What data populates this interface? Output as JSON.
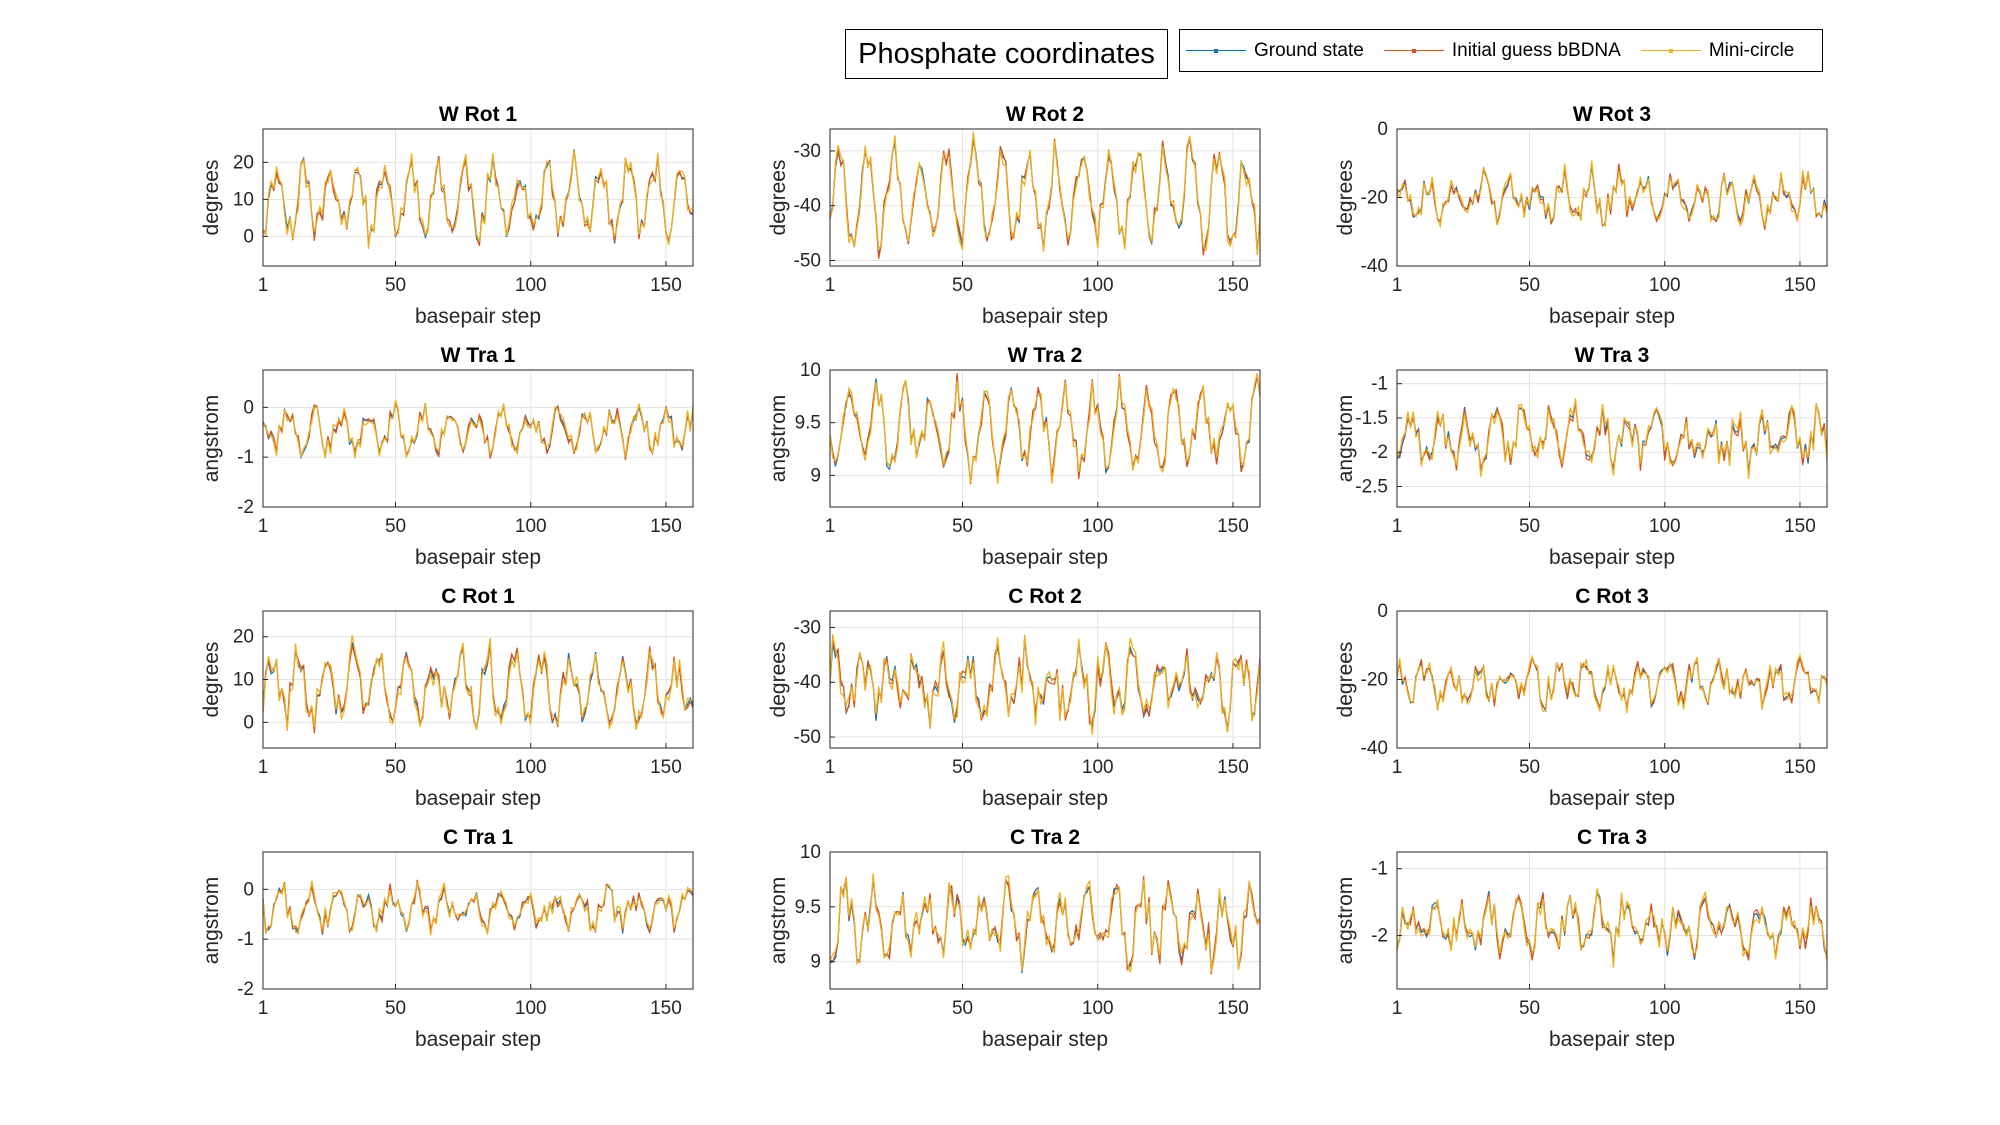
{
  "figure": {
    "suptitle": "Phosphate coordinates",
    "legend": [
      {
        "label": "Ground state",
        "color": "#0072BD"
      },
      {
        "label": "Initial guess bBDNA",
        "color": "#D95319"
      },
      {
        "label": "Mini-circle",
        "color": "#EDB120"
      }
    ]
  },
  "chart_data": [
    {
      "type": "line",
      "title": "W Rot 1",
      "xlabel": "basepair step",
      "ylabel": "degrees",
      "xlim": [
        1,
        160
      ],
      "ylim": [
        -8,
        29
      ],
      "xticks": [
        1,
        50,
        100,
        150
      ],
      "yticks": [
        0,
        10,
        20
      ],
      "grid": true,
      "seed": 11,
      "series": [
        {
          "name": "Ground state",
          "color": "#0072BD"
        },
        {
          "name": "Initial guess bBDNA",
          "color": "#D95319"
        },
        {
          "name": "Mini-circle",
          "color": "#EDB120"
        }
      ],
      "summary": {
        "base": 10,
        "amplitude": 10,
        "noise": 4
      }
    },
    {
      "type": "line",
      "title": "W Rot 2",
      "xlabel": "basepair step",
      "ylabel": "degrees",
      "xlim": [
        1,
        160
      ],
      "ylim": [
        -51,
        -26
      ],
      "xticks": [
        1,
        50,
        100,
        150
      ],
      "yticks": [
        -50,
        -40,
        -30
      ],
      "grid": true,
      "seed": 12,
      "series": [
        {
          "name": "Ground state",
          "color": "#0072BD"
        },
        {
          "name": "Initial guess bBDNA",
          "color": "#D95319"
        },
        {
          "name": "Mini-circle",
          "color": "#EDB120"
        }
      ],
      "summary": {
        "base": -38,
        "amplitude": 9,
        "noise": 3
      }
    },
    {
      "type": "line",
      "title": "W Rot 3",
      "xlabel": "basepair step",
      "ylabel": "degrees",
      "xlim": [
        1,
        160
      ],
      "ylim": [
        -40,
        0
      ],
      "xticks": [
        1,
        50,
        100,
        150
      ],
      "yticks": [
        -40,
        -20,
        0
      ],
      "grid": true,
      "seed": 13,
      "series": [
        {
          "name": "Ground state",
          "color": "#0072BD"
        },
        {
          "name": "Initial guess bBDNA",
          "color": "#D95319"
        },
        {
          "name": "Mini-circle",
          "color": "#EDB120"
        }
      ],
      "summary": {
        "base": -20,
        "amplitude": 6,
        "noise": 4
      }
    },
    {
      "type": "line",
      "title": "W Tra 1",
      "xlabel": "basepair step",
      "ylabel": "angstrom",
      "xlim": [
        1,
        160
      ],
      "ylim": [
        -2,
        0.75
      ],
      "xticks": [
        1,
        50,
        100,
        150
      ],
      "yticks": [
        -2,
        -1,
        0
      ],
      "grid": true,
      "seed": 21,
      "series": [
        {
          "name": "Ground state",
          "color": "#0072BD"
        },
        {
          "name": "Initial guess bBDNA",
          "color": "#D95319"
        },
        {
          "name": "Mini-circle",
          "color": "#EDB120"
        }
      ],
      "summary": {
        "base": -0.45,
        "amplitude": 0.45,
        "noise": 0.25
      }
    },
    {
      "type": "line",
      "title": "W Tra 2",
      "xlabel": "basepair step",
      "ylabel": "angstrom",
      "xlim": [
        1,
        160
      ],
      "ylim": [
        8.7,
        10
      ],
      "xticks": [
        1,
        50,
        100,
        150
      ],
      "yticks": [
        9,
        9.5,
        10
      ],
      "grid": true,
      "seed": 22,
      "series": [
        {
          "name": "Ground state",
          "color": "#0072BD"
        },
        {
          "name": "Initial guess bBDNA",
          "color": "#D95319"
        },
        {
          "name": "Mini-circle",
          "color": "#EDB120"
        }
      ],
      "summary": {
        "base": 9.45,
        "amplitude": 0.4,
        "noise": 0.15
      }
    },
    {
      "type": "line",
      "title": "W Tra 3",
      "xlabel": "basepair step",
      "ylabel": "angstrom",
      "xlim": [
        1,
        160
      ],
      "ylim": [
        -2.8,
        -0.8
      ],
      "xticks": [
        1,
        50,
        100,
        150
      ],
      "yticks": [
        -2.5,
        -2,
        -1.5,
        -1
      ],
      "grid": true,
      "seed": 23,
      "series": [
        {
          "name": "Ground state",
          "color": "#0072BD"
        },
        {
          "name": "Initial guess bBDNA",
          "color": "#D95319"
        },
        {
          "name": "Mini-circle",
          "color": "#EDB120"
        }
      ],
      "summary": {
        "base": -1.8,
        "amplitude": 0.35,
        "noise": 0.25
      }
    },
    {
      "type": "line",
      "title": "C Rot 1",
      "xlabel": "basepair step",
      "ylabel": "degrees",
      "xlim": [
        1,
        160
      ],
      "ylim": [
        -6,
        26
      ],
      "xticks": [
        1,
        50,
        100,
        150
      ],
      "yticks": [
        0,
        10,
        20
      ],
      "grid": true,
      "seed": 31,
      "series": [
        {
          "name": "Ground state",
          "color": "#0072BD"
        },
        {
          "name": "Initial guess bBDNA",
          "color": "#D95319"
        },
        {
          "name": "Mini-circle",
          "color": "#EDB120"
        }
      ],
      "summary": {
        "base": 8,
        "amplitude": 8,
        "noise": 4
      }
    },
    {
      "type": "line",
      "title": "C Rot 2",
      "xlabel": "basepair step",
      "ylabel": "degrees",
      "xlim": [
        1,
        160
      ],
      "ylim": [
        -52,
        -27
      ],
      "xticks": [
        1,
        50,
        100,
        150
      ],
      "yticks": [
        -50,
        -40,
        -30
      ],
      "grid": true,
      "seed": 32,
      "series": [
        {
          "name": "Ground state",
          "color": "#0072BD"
        },
        {
          "name": "Initial guess bBDNA",
          "color": "#D95319"
        },
        {
          "name": "Mini-circle",
          "color": "#EDB120"
        }
      ],
      "summary": {
        "base": -40,
        "amplitude": 5,
        "noise": 4
      }
    },
    {
      "type": "line",
      "title": "C Rot 3",
      "xlabel": "basepair step",
      "ylabel": "degrees",
      "xlim": [
        1,
        160
      ],
      "ylim": [
        -40,
        0
      ],
      "xticks": [
        1,
        50,
        100,
        150
      ],
      "yticks": [
        -40,
        -20,
        0
      ],
      "grid": true,
      "seed": 33,
      "series": [
        {
          "name": "Ground state",
          "color": "#0072BD"
        },
        {
          "name": "Initial guess bBDNA",
          "color": "#D95319"
        },
        {
          "name": "Mini-circle",
          "color": "#EDB120"
        }
      ],
      "summary": {
        "base": -21,
        "amplitude": 5,
        "noise": 4
      }
    },
    {
      "type": "line",
      "title": "C Tra 1",
      "xlabel": "basepair step",
      "ylabel": "angstrom",
      "xlim": [
        1,
        160
      ],
      "ylim": [
        -2,
        0.75
      ],
      "xticks": [
        1,
        50,
        100,
        150
      ],
      "yticks": [
        -2,
        -1,
        0
      ],
      "grid": true,
      "seed": 41,
      "series": [
        {
          "name": "Ground state",
          "color": "#0072BD"
        },
        {
          "name": "Initial guess bBDNA",
          "color": "#D95319"
        },
        {
          "name": "Mini-circle",
          "color": "#EDB120"
        }
      ],
      "summary": {
        "base": -0.4,
        "amplitude": 0.35,
        "noise": 0.25
      }
    },
    {
      "type": "line",
      "title": "C Tra 2",
      "xlabel": "basepair step",
      "ylabel": "angstrom",
      "xlim": [
        1,
        160
      ],
      "ylim": [
        8.75,
        10
      ],
      "xticks": [
        1,
        50,
        100,
        150
      ],
      "yticks": [
        9,
        9.5,
        10
      ],
      "grid": true,
      "seed": 42,
      "series": [
        {
          "name": "Ground state",
          "color": "#0072BD"
        },
        {
          "name": "Initial guess bBDNA",
          "color": "#D95319"
        },
        {
          "name": "Mini-circle",
          "color": "#EDB120"
        }
      ],
      "summary": {
        "base": 9.35,
        "amplitude": 0.3,
        "noise": 0.18
      }
    },
    {
      "type": "line",
      "title": "C Tra 3",
      "xlabel": "basepair step",
      "ylabel": "angstrom",
      "xlim": [
        1,
        160
      ],
      "ylim": [
        -2.8,
        -0.75
      ],
      "xticks": [
        1,
        50,
        100,
        150
      ],
      "yticks": [
        -2,
        -1
      ],
      "grid": true,
      "seed": 43,
      "series": [
        {
          "name": "Ground state",
          "color": "#0072BD"
        },
        {
          "name": "Initial guess bBDNA",
          "color": "#D95319"
        },
        {
          "name": "Mini-circle",
          "color": "#EDB120"
        }
      ],
      "summary": {
        "base": -1.85,
        "amplitude": 0.35,
        "noise": 0.25
      }
    }
  ]
}
